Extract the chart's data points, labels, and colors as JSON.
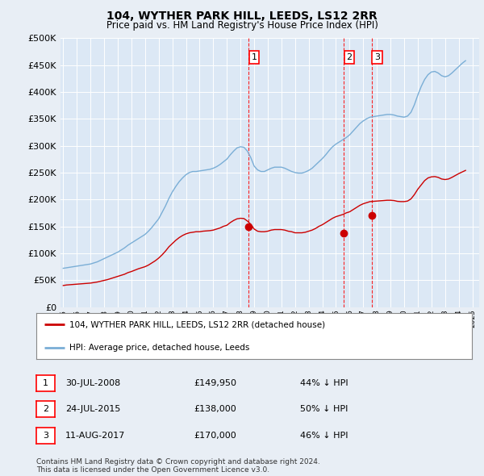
{
  "title": "104, WYTHER PARK HILL, LEEDS, LS12 2RR",
  "subtitle": "Price paid vs. HM Land Registry's House Price Index (HPI)",
  "ylim": [
    0,
    500000
  ],
  "yticks": [
    0,
    50000,
    100000,
    150000,
    200000,
    250000,
    300000,
    350000,
    400000,
    450000,
    500000
  ],
  "xlim_start": 1994.8,
  "xlim_end": 2025.5,
  "background_color": "#e8eef5",
  "plot_bg_color": "#dce8f5",
  "grid_color": "#ffffff",
  "sale_color": "#cc0000",
  "hpi_color": "#7aaed6",
  "sale_label": "104, WYTHER PARK HILL, LEEDS, LS12 2RR (detached house)",
  "hpi_label": "HPI: Average price, detached house, Leeds",
  "transactions": [
    {
      "num": 1,
      "date": "30-JUL-2008",
      "price": 149950,
      "pct": "44%",
      "year_x": 2008.58
    },
    {
      "num": 2,
      "date": "24-JUL-2015",
      "price": 138000,
      "pct": "50%",
      "year_x": 2015.56
    },
    {
      "num": 3,
      "date": "11-AUG-2017",
      "price": 170000,
      "pct": "46%",
      "year_x": 2017.61
    }
  ],
  "footer": "Contains HM Land Registry data © Crown copyright and database right 2024.\nThis data is licensed under the Open Government Licence v3.0.",
  "hpi_data_years": [
    1995,
    1995.25,
    1995.5,
    1995.75,
    1996,
    1996.25,
    1996.5,
    1996.75,
    1997,
    1997.25,
    1997.5,
    1997.75,
    1998,
    1998.25,
    1998.5,
    1998.75,
    1999,
    1999.25,
    1999.5,
    1999.75,
    2000,
    2000.25,
    2000.5,
    2000.75,
    2001,
    2001.25,
    2001.5,
    2001.75,
    2002,
    2002.25,
    2002.5,
    2002.75,
    2003,
    2003.25,
    2003.5,
    2003.75,
    2004,
    2004.25,
    2004.5,
    2004.75,
    2005,
    2005.25,
    2005.5,
    2005.75,
    2006,
    2006.25,
    2006.5,
    2006.75,
    2007,
    2007.25,
    2007.5,
    2007.75,
    2008,
    2008.25,
    2008.5,
    2008.75,
    2009,
    2009.25,
    2009.5,
    2009.75,
    2010,
    2010.25,
    2010.5,
    2010.75,
    2011,
    2011.25,
    2011.5,
    2011.75,
    2012,
    2012.25,
    2012.5,
    2012.75,
    2013,
    2013.25,
    2013.5,
    2013.75,
    2014,
    2014.25,
    2014.5,
    2014.75,
    2015,
    2015.25,
    2015.5,
    2015.75,
    2016,
    2016.25,
    2016.5,
    2016.75,
    2017,
    2017.25,
    2017.5,
    2017.75,
    2018,
    2018.25,
    2018.5,
    2018.75,
    2019,
    2019.25,
    2019.5,
    2019.75,
    2020,
    2020.25,
    2020.5,
    2020.75,
    2021,
    2021.25,
    2021.5,
    2021.75,
    2022,
    2022.25,
    2022.5,
    2022.75,
    2023,
    2023.25,
    2023.5,
    2023.75,
    2024,
    2024.25,
    2024.5
  ],
  "hpi_data_values": [
    72000,
    73000,
    74000,
    75000,
    76000,
    77000,
    78000,
    79000,
    80000,
    82000,
    84000,
    87000,
    90000,
    93000,
    96000,
    99000,
    102000,
    106000,
    110000,
    115000,
    119000,
    123000,
    127000,
    131000,
    135000,
    141000,
    148000,
    156000,
    164000,
    176000,
    188000,
    202000,
    214000,
    224000,
    233000,
    240000,
    246000,
    250000,
    252000,
    252000,
    253000,
    254000,
    255000,
    256000,
    258000,
    261000,
    265000,
    270000,
    275000,
    283000,
    290000,
    296000,
    298000,
    297000,
    290000,
    278000,
    262000,
    255000,
    252000,
    252000,
    255000,
    258000,
    260000,
    260000,
    260000,
    258000,
    255000,
    252000,
    250000,
    249000,
    249000,
    251000,
    254000,
    258000,
    264000,
    270000,
    276000,
    283000,
    291000,
    298000,
    303000,
    307000,
    311000,
    315000,
    320000,
    327000,
    334000,
    341000,
    346000,
    350000,
    353000,
    354000,
    355000,
    356000,
    357000,
    358000,
    358000,
    357000,
    355000,
    354000,
    353000,
    355000,
    362000,
    376000,
    394000,
    410000,
    423000,
    432000,
    437000,
    438000,
    435000,
    430000,
    428000,
    430000,
    435000,
    441000,
    447000,
    453000,
    458000
  ],
  "sale_data_years": [
    1995,
    1995.25,
    1995.5,
    1995.75,
    1996,
    1996.25,
    1996.5,
    1996.75,
    1997,
    1997.25,
    1997.5,
    1997.75,
    1998,
    1998.25,
    1998.5,
    1998.75,
    1999,
    1999.25,
    1999.5,
    1999.75,
    2000,
    2000.25,
    2000.5,
    2000.75,
    2001,
    2001.25,
    2001.5,
    2001.75,
    2002,
    2002.25,
    2002.5,
    2002.75,
    2003,
    2003.25,
    2003.5,
    2003.75,
    2004,
    2004.25,
    2004.5,
    2004.75,
    2005,
    2005.25,
    2005.5,
    2005.75,
    2006,
    2006.25,
    2006.5,
    2006.75,
    2007,
    2007.25,
    2007.5,
    2007.75,
    2008,
    2008.25,
    2008.5,
    2008.75,
    2009,
    2009.25,
    2009.5,
    2009.75,
    2010,
    2010.25,
    2010.5,
    2010.75,
    2011,
    2011.25,
    2011.5,
    2011.75,
    2012,
    2012.25,
    2012.5,
    2012.75,
    2013,
    2013.25,
    2013.5,
    2013.75,
    2014,
    2014.25,
    2014.5,
    2014.75,
    2015,
    2015.25,
    2015.5,
    2015.75,
    2016,
    2016.25,
    2016.5,
    2016.75,
    2017,
    2017.25,
    2017.5,
    2017.75,
    2018,
    2018.25,
    2018.5,
    2018.75,
    2019,
    2019.25,
    2019.5,
    2019.75,
    2020,
    2020.25,
    2020.5,
    2020.75,
    2021,
    2021.25,
    2021.5,
    2021.75,
    2022,
    2022.25,
    2022.5,
    2022.75,
    2023,
    2023.25,
    2023.5,
    2023.75,
    2024,
    2024.25,
    2024.5
  ],
  "sale_data_values": [
    40000,
    41000,
    41500,
    42000,
    42500,
    43000,
    43500,
    44000,
    44500,
    45500,
    46500,
    48000,
    49500,
    51000,
    53000,
    55000,
    57000,
    59000,
    61000,
    64000,
    66000,
    68500,
    71000,
    73000,
    75000,
    78000,
    82000,
    86000,
    91000,
    97000,
    104000,
    112000,
    118000,
    124000,
    129000,
    133000,
    136000,
    138000,
    139000,
    140000,
    140000,
    141000,
    141500,
    142000,
    143000,
    145000,
    147000,
    150000,
    152000,
    157000,
    161000,
    164000,
    165000,
    164500,
    160000,
    154000,
    145000,
    141000,
    140000,
    140000,
    141000,
    143000,
    144000,
    144000,
    144000,
    143000,
    141000,
    140000,
    138000,
    138000,
    138000,
    139000,
    141000,
    143000,
    146000,
    150000,
    153000,
    157000,
    161000,
    165000,
    168000,
    170000,
    172000,
    175000,
    177000,
    181000,
    185000,
    189000,
    192000,
    194000,
    196000,
    196500,
    197000,
    197500,
    198000,
    198500,
    198500,
    198000,
    196500,
    196000,
    196000,
    197000,
    201000,
    209000,
    219000,
    227000,
    235000,
    240000,
    242000,
    242500,
    241000,
    238000,
    237000,
    238000,
    241000,
    244500,
    248000,
    251000,
    254000
  ]
}
